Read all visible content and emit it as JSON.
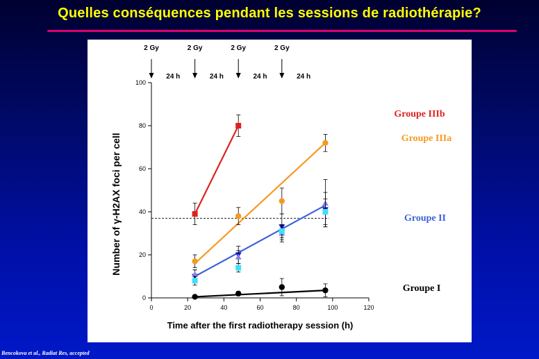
{
  "slide": {
    "title": "Quelles conséquences pendant les sessions de radiothérapie?",
    "citation": "Bencokova et al., Radiat Res, accepted"
  },
  "colors": {
    "background": "#0010a8",
    "title": "#ffff00",
    "title_rule": "#e0006e",
    "groupe_IIIb": "#e02020",
    "groupe_IIIa": "#f59a20",
    "groupe_II": "#3d63d6",
    "groupe_I": "#000000"
  },
  "chart_data": {
    "type": "scatter",
    "xlabel": "Time after the first radiotherapy session (h)",
    "ylabel": "Number of γ-H2AX foci per cell",
    "xlim": [
      0,
      120
    ],
    "ylim": [
      0,
      100
    ],
    "xticks": [
      0,
      20,
      40,
      60,
      80,
      100,
      120
    ],
    "yticks": [
      0,
      20,
      40,
      60,
      80,
      100
    ],
    "dose_labels": [
      "2 Gy",
      "2 Gy",
      "2 Gy",
      "2 Gy"
    ],
    "dose_times": [
      0,
      24,
      48,
      72
    ],
    "interval_labels": [
      "24 h",
      "24 h",
      "24 h",
      "24 h"
    ],
    "interval_positions": [
      12,
      36,
      60,
      84
    ],
    "threshold_y": 37,
    "series": [
      {
        "name": "Groupe IIIb",
        "color": "#e02020",
        "marker": "square",
        "points": [
          [
            24,
            39,
            5
          ],
          [
            48,
            80,
            5
          ]
        ],
        "fit": [
          [
            24,
            39
          ],
          [
            48,
            80
          ]
        ]
      },
      {
        "name": "Groupe IIIa",
        "color": "#f59a20",
        "marker": "circle",
        "points": [
          [
            24,
            17,
            3
          ],
          [
            48,
            38,
            4
          ],
          [
            72,
            45,
            6
          ],
          [
            96,
            72,
            4
          ]
        ],
        "fit": [
          [
            24,
            16
          ],
          [
            96,
            72
          ]
        ]
      },
      {
        "name": "Groupe II",
        "color": "#3d63d6",
        "marker": "mixed",
        "points": [
          [
            24,
            10,
            3,
            "tri-down",
            "#1818d0"
          ],
          [
            24,
            11,
            2,
            "tri-up",
            "#8a80e0"
          ],
          [
            24,
            8,
            2,
            "square",
            "#40e0f8"
          ],
          [
            48,
            20,
            4,
            "tri-down",
            "#1818d0"
          ],
          [
            48,
            19,
            3,
            "tri-up",
            "#8a80e0"
          ],
          [
            48,
            14,
            2,
            "square",
            "#40e0f8"
          ],
          [
            72,
            33,
            6,
            "tri-down",
            "#1818d0"
          ],
          [
            72,
            30,
            4,
            "tri-up",
            "#8a80e0"
          ],
          [
            72,
            31,
            3,
            "square",
            "#40e0f8"
          ],
          [
            96,
            41,
            8,
            "tri-down",
            "#1818d0"
          ],
          [
            96,
            44,
            11,
            "tri-up",
            "#8a80e0"
          ],
          [
            96,
            40,
            6,
            "square",
            "#40e0f8"
          ]
        ],
        "fit": [
          [
            24,
            10
          ],
          [
            96,
            43
          ]
        ]
      },
      {
        "name": "Groupe I",
        "color": "#000000",
        "marker": "circle",
        "points": [
          [
            24,
            0.5,
            0.5
          ],
          [
            48,
            2,
            1
          ],
          [
            72,
            5,
            4
          ],
          [
            96,
            3.5,
            3
          ]
        ],
        "fit": [
          [
            24,
            0.5
          ],
          [
            96,
            3.5
          ]
        ]
      }
    ]
  }
}
